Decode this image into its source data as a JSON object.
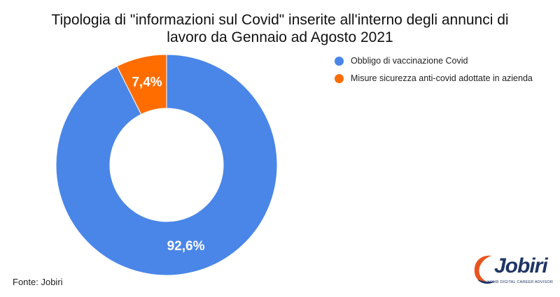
{
  "title_lines": [
    "Tipologia di \"informazioni sul Covid\" inserite all'interno degli annunci di",
    "lavoro da Gennaio ad Agosto 2021"
  ],
  "source": "Fonte: Jobiri",
  "logo": {
    "text": "Jobiri",
    "tagline": "YOUR DIGITAL CAREER ADVISOR"
  },
  "colors": {
    "series1": "#4a86e8",
    "series2": "#ff6d01",
    "logo_navy": "#1f3566",
    "logo_orange": "#e8541e"
  },
  "chart_data": {
    "type": "pie",
    "variant": "donut",
    "title": "Tipologia di \"informazioni sul Covid\" inserite all'interno degli annunci di lavoro da Gennaio ad Agosto 2021",
    "categories": [
      "Obbligo di vaccinazione Covid",
      "Misure sicurezza anti-covid adottate in azienda"
    ],
    "values": [
      92.6,
      7.4
    ],
    "labels": [
      "92,6%",
      "7,4%"
    ],
    "colors": [
      "#4a86e8",
      "#ff6d01"
    ],
    "legend": "right"
  }
}
